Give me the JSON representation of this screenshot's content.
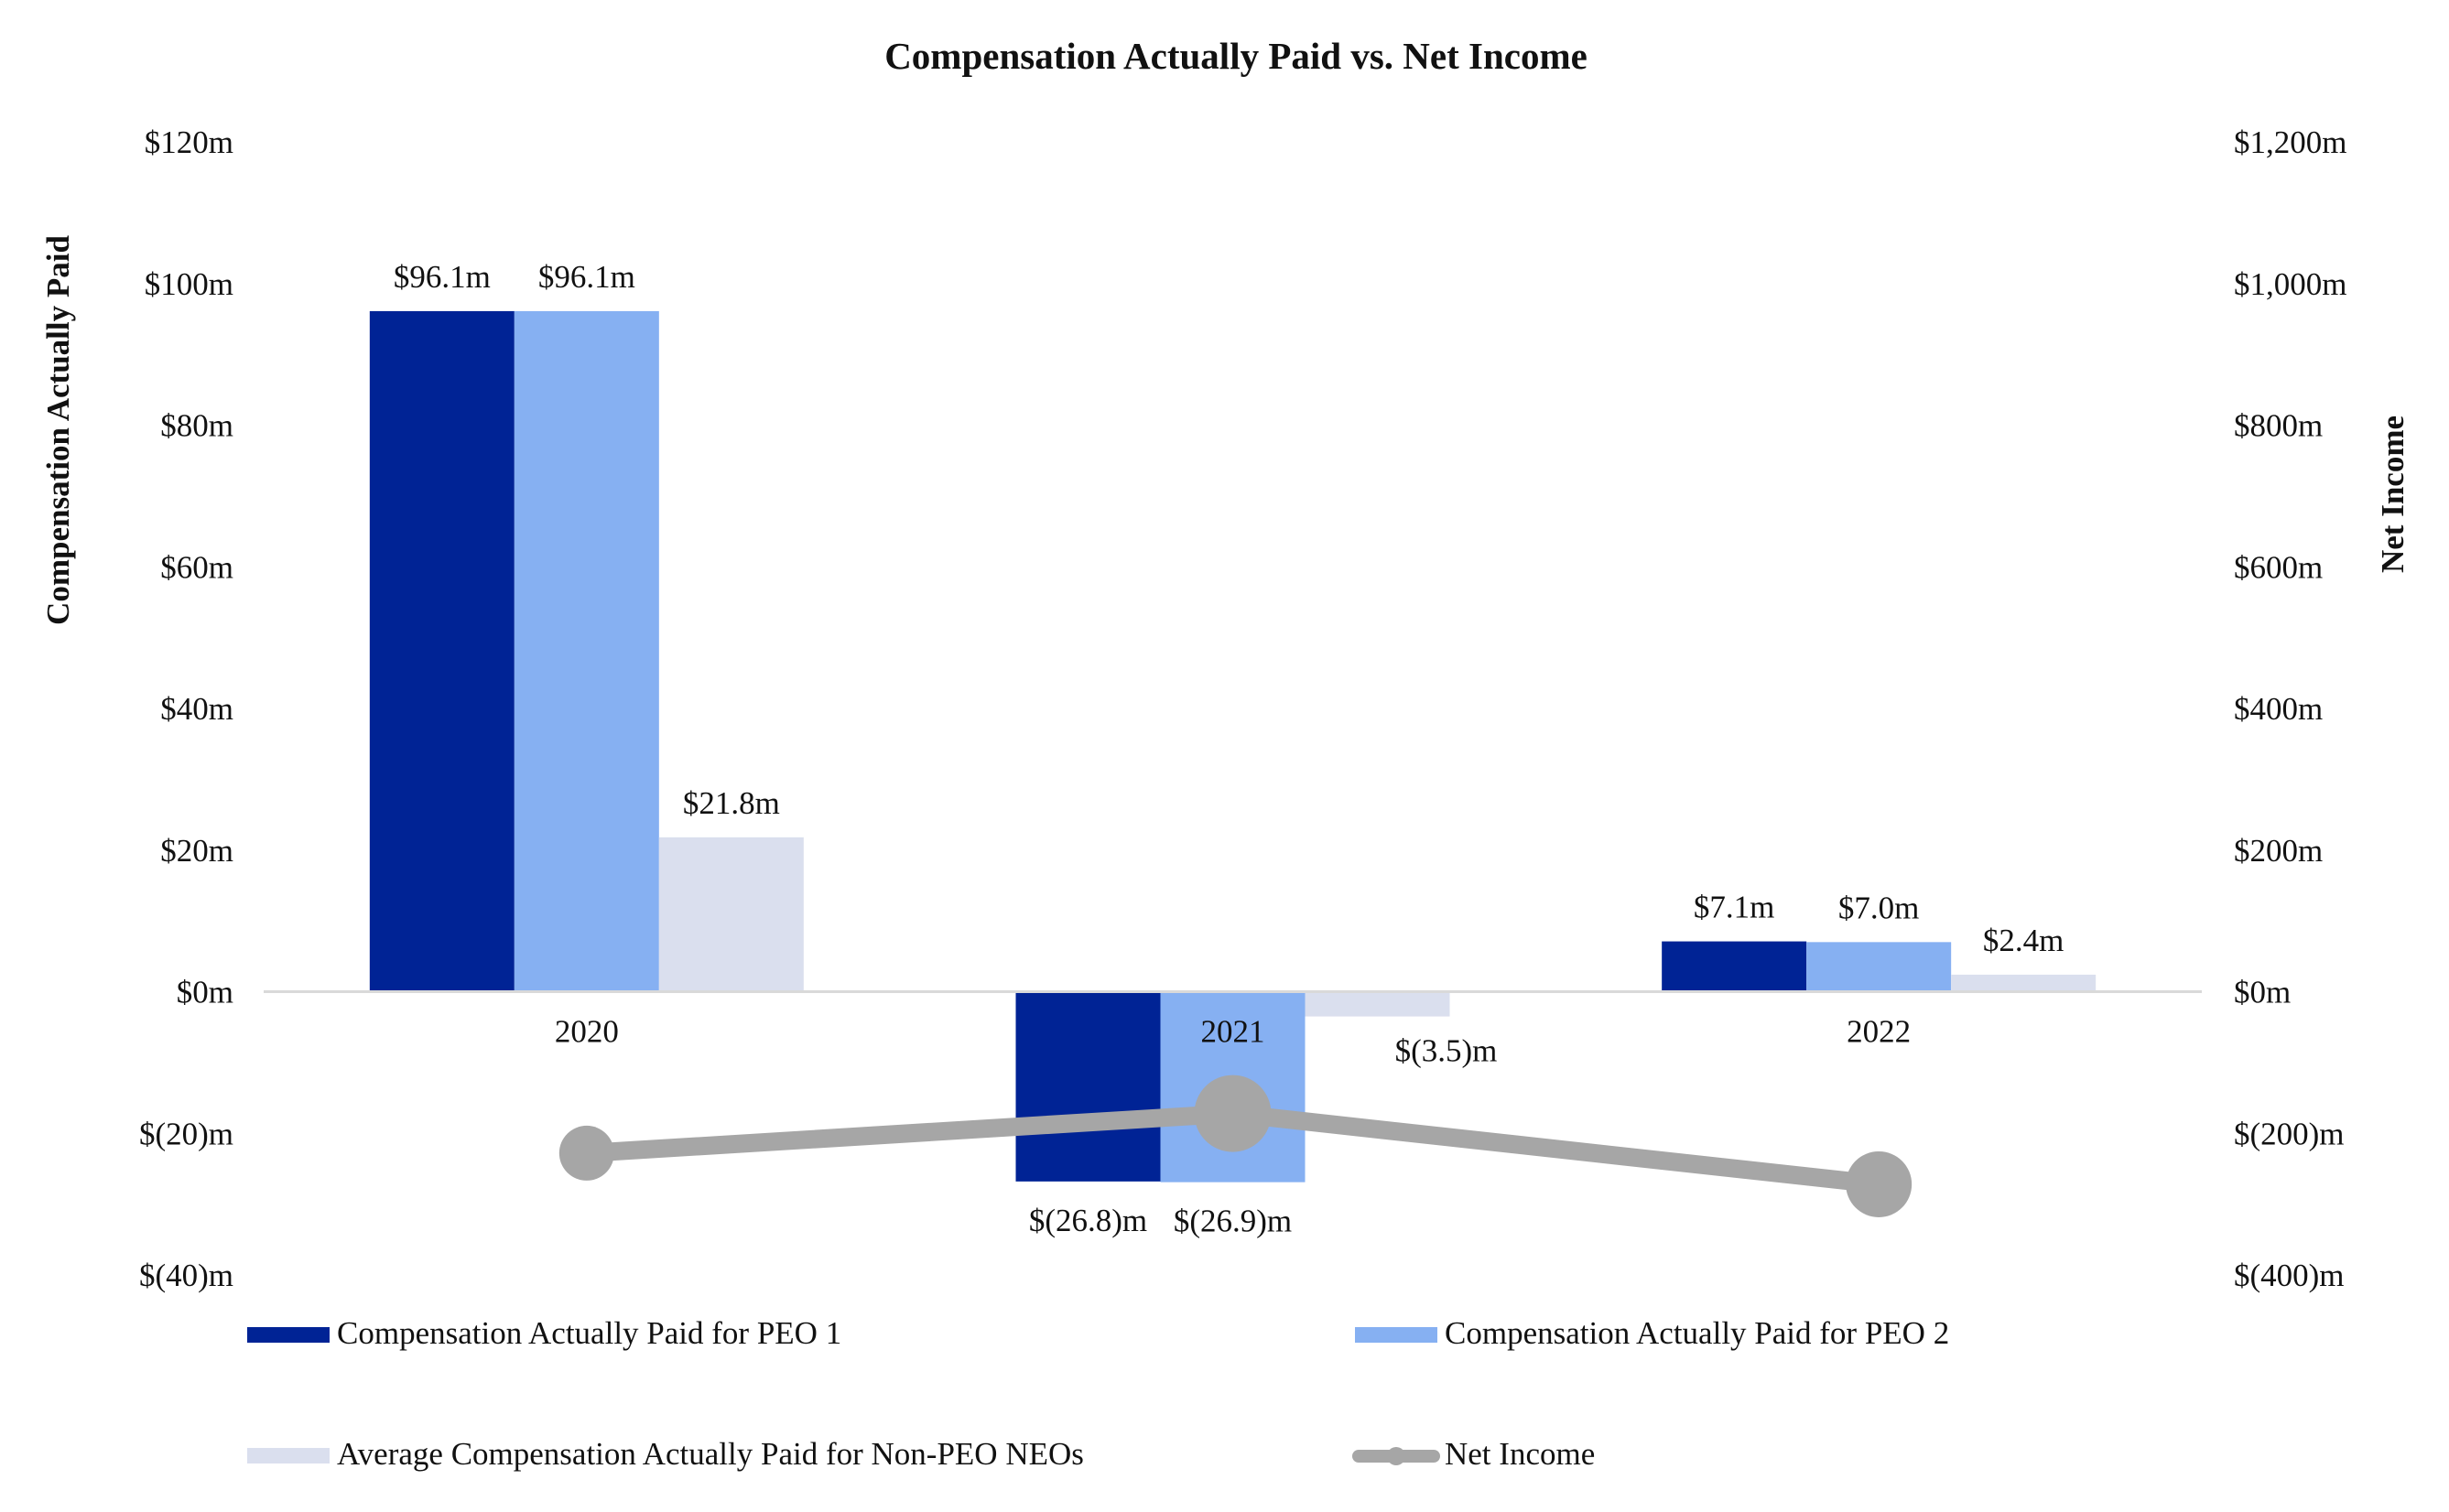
{
  "chart_data": {
    "type": "bar",
    "title": "Compensation Actually Paid vs. Net Income",
    "ylabel": "Compensation Actually Paid",
    "y2label": "Net Income",
    "categories": [
      "2020",
      "2021",
      "2022"
    ],
    "ylim": [
      -40,
      120
    ],
    "y2lim": [
      -400,
      1200
    ],
    "y_ticks": [
      120,
      100,
      80,
      60,
      40,
      20,
      0,
      -20,
      -40
    ],
    "y_tick_labels": [
      "$120m",
      "$100m",
      "$80m",
      "$60m",
      "$40m",
      "$20m",
      "$0m",
      "$(20)m",
      "$(40)m"
    ],
    "y2_ticks": [
      1200,
      1000,
      800,
      600,
      400,
      200,
      0,
      -200,
      -400
    ],
    "y2_tick_labels": [
      "$1,200m",
      "$1,000m",
      "$800m",
      "$600m",
      "$400m",
      "$200m",
      "$0m",
      "$(200)m",
      "$(400)m"
    ],
    "series": [
      {
        "name": "Compensation Actually Paid for PEO 1",
        "type": "bar",
        "axis": "left",
        "color": "#002395",
        "values": [
          96.1,
          -26.8,
          7.1
        ],
        "labels": [
          "$96.1m",
          "$(26.8)m",
          "$7.1m"
        ]
      },
      {
        "name": "Compensation Actually Paid for PEO 2",
        "type": "bar",
        "axis": "left",
        "color": "#86B0F2",
        "values": [
          96.1,
          -26.9,
          7.0
        ],
        "labels": [
          "$96.1m",
          "$(26.9)m",
          "$7.0m"
        ]
      },
      {
        "name": "Average Compensation Actually Paid for Non-PEO NEOs",
        "type": "bar",
        "axis": "left",
        "color": "#DADFEE",
        "values": [
          21.8,
          -3.5,
          2.4
        ],
        "labels": [
          "$21.8m",
          "$(3.5)m",
          "$2.4m"
        ]
      },
      {
        "name": "Net Income",
        "type": "line",
        "axis": "right",
        "color": "#A6A6A6",
        "values": [
          -228,
          -172,
          -272
        ],
        "marker_sizes": [
          1,
          1.4,
          1.2
        ]
      }
    ],
    "legend": "bottom"
  }
}
